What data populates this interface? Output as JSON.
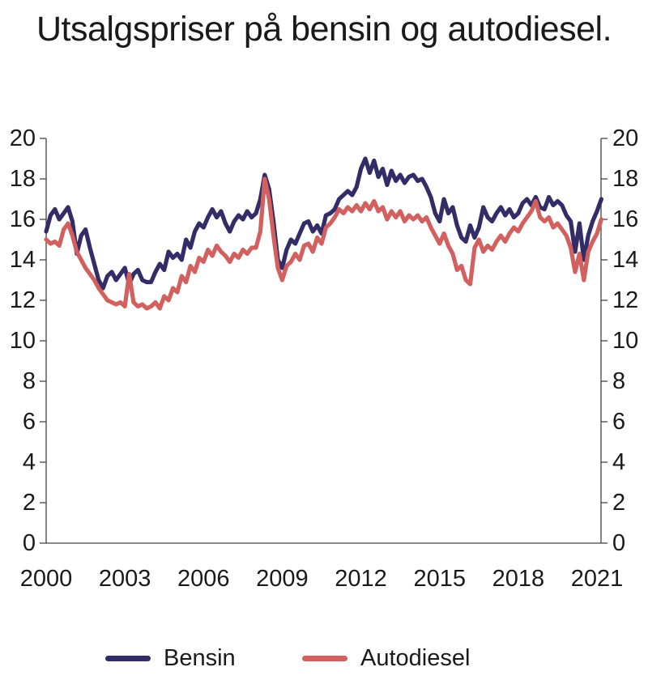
{
  "title": "Utsalgspriser på bensin og autodiesel.",
  "chart_data": {
    "type": "line",
    "title": "Utsalgspriser på bensin og autodiesel.",
    "xlabel": "",
    "ylabel": "",
    "x_start": 2000,
    "x_step_years": 0.166667,
    "x_tick_years": [
      2000,
      2003,
      2006,
      2009,
      2012,
      2015,
      2018,
      2021
    ],
    "x_tick_labels": [
      "2000",
      "2003",
      "2006",
      "2009",
      "2012",
      "2015",
      "2018",
      "2021"
    ],
    "ylim": [
      0,
      20
    ],
    "y_ticks": [
      0,
      2,
      4,
      6,
      8,
      10,
      12,
      14,
      16,
      18,
      20
    ],
    "grid": false,
    "dual_y_axis": true,
    "legend_position": "bottom",
    "axis_color": "#444444",
    "text_color": "#1a1a1a",
    "series": [
      {
        "name": "Bensin",
        "color": "#322c67",
        "values": [
          15.4,
          16.2,
          16.5,
          16.0,
          16.3,
          16.6,
          15.9,
          14.3,
          15.2,
          15.5,
          14.6,
          13.8,
          13.0,
          12.6,
          13.2,
          13.4,
          13.0,
          13.3,
          13.6,
          12.8,
          13.3,
          13.5,
          13.0,
          12.9,
          12.9,
          13.4,
          13.8,
          13.5,
          14.4,
          14.1,
          14.3,
          14.0,
          15.0,
          14.6,
          15.4,
          15.8,
          15.6,
          16.1,
          16.5,
          16.1,
          16.4,
          15.8,
          15.4,
          15.9,
          16.2,
          16.0,
          16.4,
          16.1,
          16.3,
          17.0,
          18.2,
          17.5,
          15.9,
          14.0,
          13.6,
          14.5,
          15.0,
          14.8,
          15.3,
          15.8,
          15.9,
          15.4,
          15.7,
          15.3,
          16.2,
          16.3,
          16.5,
          17.0,
          17.2,
          17.4,
          17.2,
          17.6,
          18.5,
          19.0,
          18.3,
          18.9,
          18.1,
          18.5,
          17.7,
          18.4,
          17.9,
          18.2,
          17.8,
          18.1,
          18.2,
          17.9,
          18.0,
          17.6,
          17.1,
          16.3,
          15.9,
          17.0,
          16.3,
          16.6,
          15.7,
          15.1,
          14.9,
          15.7,
          15.1,
          15.6,
          16.6,
          16.1,
          15.9,
          16.3,
          16.6,
          16.2,
          16.5,
          16.1,
          16.3,
          16.8,
          17.0,
          16.7,
          17.1,
          16.6,
          16.5,
          17.1,
          16.7,
          16.9,
          16.7,
          16.2,
          15.9,
          14.4,
          15.8,
          14.0,
          15.2,
          15.9,
          16.4,
          17.0
        ]
      },
      {
        "name": "Autodiesel",
        "color": "#d2605f",
        "values": [
          15.0,
          14.8,
          14.9,
          14.7,
          15.5,
          15.8,
          15.2,
          14.4,
          14.0,
          13.6,
          13.3,
          13.0,
          12.6,
          12.3,
          12.0,
          11.9,
          11.8,
          11.9,
          11.7,
          13.3,
          11.9,
          11.7,
          11.8,
          11.6,
          11.7,
          11.9,
          11.6,
          12.2,
          12.0,
          12.6,
          12.4,
          13.2,
          12.9,
          13.7,
          13.4,
          14.1,
          13.9,
          14.5,
          14.2,
          14.7,
          14.4,
          14.2,
          13.9,
          14.3,
          14.1,
          14.5,
          14.3,
          14.6,
          14.6,
          15.4,
          18.0,
          17.0,
          15.2,
          13.6,
          13.0,
          13.7,
          13.9,
          14.3,
          14.0,
          14.7,
          14.8,
          14.4,
          15.1,
          14.8,
          15.6,
          15.8,
          16.1,
          16.5,
          16.3,
          16.6,
          16.4,
          16.7,
          16.4,
          16.8,
          16.5,
          16.9,
          16.4,
          16.6,
          16.0,
          16.4,
          16.1,
          16.4,
          15.9,
          16.2,
          16.0,
          16.2,
          15.9,
          16.1,
          15.6,
          15.2,
          14.8,
          15.3,
          14.7,
          14.3,
          13.5,
          13.7,
          13.0,
          12.8,
          14.6,
          15.0,
          14.4,
          14.7,
          14.5,
          14.9,
          15.2,
          14.9,
          15.3,
          15.6,
          15.4,
          15.8,
          16.1,
          16.4,
          16.9,
          16.1,
          15.9,
          16.1,
          15.6,
          15.8,
          15.5,
          15.2,
          14.6,
          13.4,
          14.3,
          13.0,
          14.4,
          14.9,
          15.3,
          16.0
        ]
      }
    ]
  }
}
